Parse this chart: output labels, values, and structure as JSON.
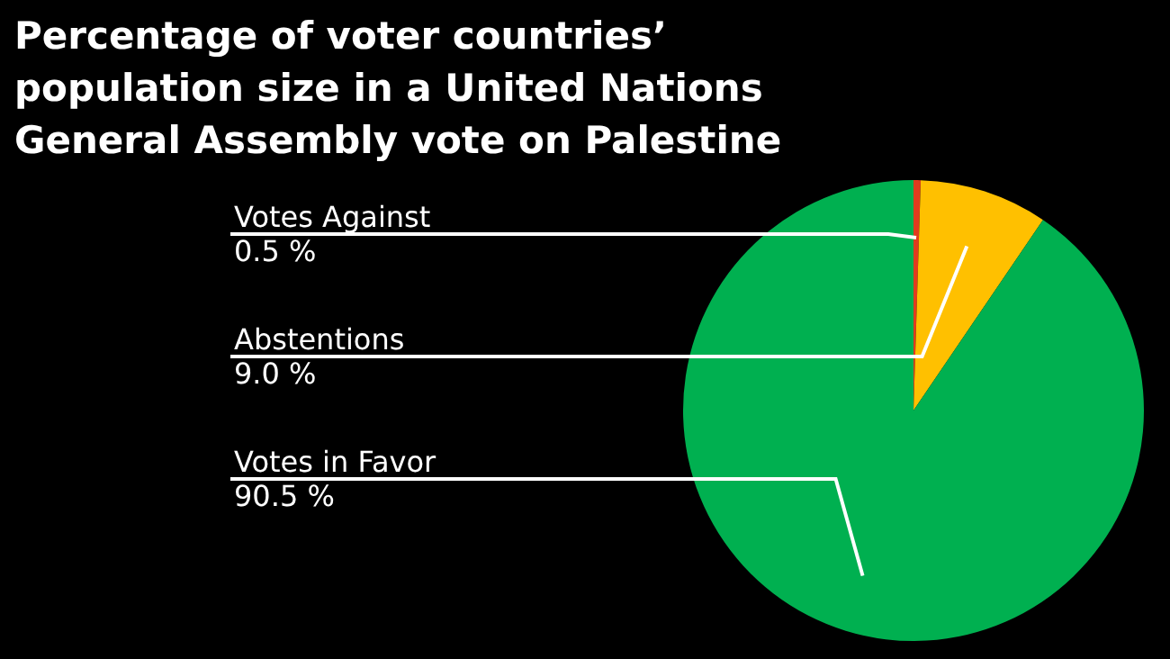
{
  "chart_data": {
    "type": "pie",
    "title": "Percentage of voter countries’ population size in a United Nations General Assembly vote on Palestine",
    "categories": [
      "Votes Against",
      "Abstentions",
      "Votes in Favor"
    ],
    "values": [
      0.5,
      9.0,
      90.5
    ],
    "value_labels": [
      "0.5 %",
      "9.0 %",
      "90.5 %"
    ],
    "colors": [
      "#e03c1e",
      "#ffc000",
      "#00b050"
    ]
  }
}
